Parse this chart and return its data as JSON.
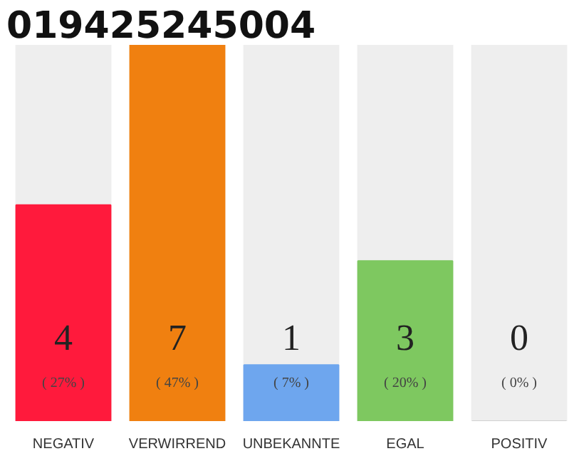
{
  "chart_data": {
    "type": "bar",
    "title": "019425245004",
    "categories": [
      "NEGATIV",
      "VERWIRREND",
      "UNBEKANNTE",
      "EGAL",
      "POSITIV"
    ],
    "values": [
      27,
      47,
      7,
      20,
      0
    ],
    "colors": [
      "#ff1a3c",
      "#f08010",
      "#6ea6ee",
      "#7ec860",
      "#d0d0d0"
    ],
    "value_labels": [
      "( 27% )",
      "( 47% )",
      "( 7% )",
      "( 20% )",
      "( 0% )"
    ],
    "annotations": [
      "4",
      "7",
      "1",
      "3",
      "0"
    ],
    "tick_labels": "x"
  }
}
